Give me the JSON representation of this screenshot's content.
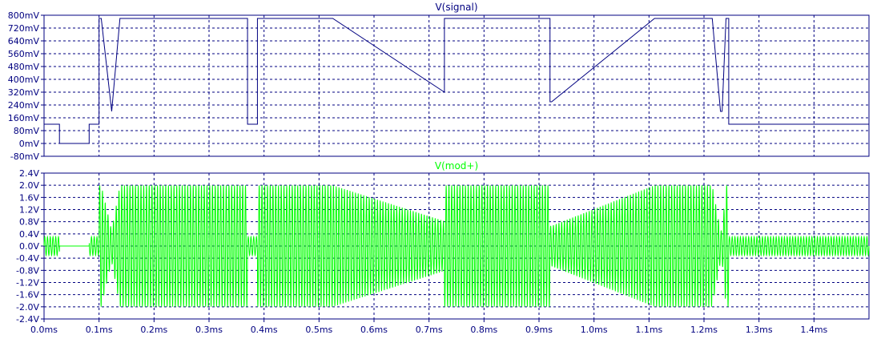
{
  "colors": {
    "background": "#ffffff",
    "grid": "#000080",
    "frame": "#000080",
    "signal_trace": "#000080",
    "mod_trace": "#00ff00",
    "signal_title": "#000080",
    "mod_title": "#00ff00",
    "tick_text": "#000080"
  },
  "chart_data": [
    {
      "type": "line",
      "title": "V(signal)",
      "xlim": [
        0,
        1.5
      ],
      "ylim": [
        -80,
        800
      ],
      "y_ticks": [
        800,
        720,
        640,
        560,
        480,
        400,
        320,
        240,
        160,
        80,
        0,
        -80
      ],
      "y_tick_labels": [
        "800mV",
        "720mV",
        "640mV",
        "560mV",
        "480mV",
        "400mV",
        "320mV",
        "240mV",
        "160mV",
        "80mV",
        "0mV",
        "-80mV"
      ],
      "grid": true,
      "series": [
        {
          "name": "V(signal)",
          "x": [
            0.0,
            0.028,
            0.028,
            0.044,
            0.044,
            0.082,
            0.082,
            0.1,
            0.1,
            0.104,
            0.104,
            0.123,
            0.138,
            0.138,
            0.37,
            0.37,
            0.388,
            0.388,
            0.525,
            0.728,
            0.728,
            0.92,
            0.92,
            0.923,
            1.11,
            1.215,
            1.23,
            1.233,
            1.24,
            1.245,
            1.245,
            1.5
          ],
          "y": [
            120,
            120,
            0,
            0,
            0,
            0,
            120,
            120,
            780,
            780,
            780,
            200,
            780,
            780,
            780,
            120,
            120,
            780,
            780,
            320,
            780,
            780,
            260,
            260,
            780,
            780,
            200,
            200,
            780,
            780,
            120,
            120
          ]
        }
      ]
    },
    {
      "type": "line",
      "title": "V(mod+)",
      "xlim": [
        0,
        1.5
      ],
      "ylim": [
        -2.4,
        2.4
      ],
      "y_ticks": [
        2.4,
        2.0,
        1.6,
        1.2,
        0.8,
        0.4,
        0.0,
        -0.4,
        -0.8,
        -1.2,
        -1.6,
        -2.0,
        -2.4
      ],
      "y_tick_labels": [
        "2.4V",
        "2.0V",
        "1.6V",
        "1.2V",
        "0.8V",
        "0.4V",
        "0.0V",
        "-0.4V",
        "-0.8V",
        "-1.2V",
        "-1.6V",
        "-2.0V",
        "-2.4V"
      ],
      "x_ticks": [
        0.0,
        0.1,
        0.2,
        0.3,
        0.4,
        0.5,
        0.6,
        0.7,
        0.8,
        0.9,
        1.0,
        1.1,
        1.2,
        1.3,
        1.4
      ],
      "x_tick_labels": [
        "0.0ms",
        "0.1ms",
        "0.2ms",
        "0.3ms",
        "0.4ms",
        "0.5ms",
        "0.6ms",
        "0.7ms",
        "0.8ms",
        "0.9ms",
        "1.0ms",
        "1.1ms",
        "1.2ms",
        "1.3ms",
        "1.4ms"
      ],
      "grid": true,
      "carrier_frequency_khz": 200,
      "envelope_gain_v_per_mv": 0.00256,
      "series": [
        {
          "name": "V(mod+)",
          "envelope_source": "V(signal)"
        }
      ]
    }
  ]
}
